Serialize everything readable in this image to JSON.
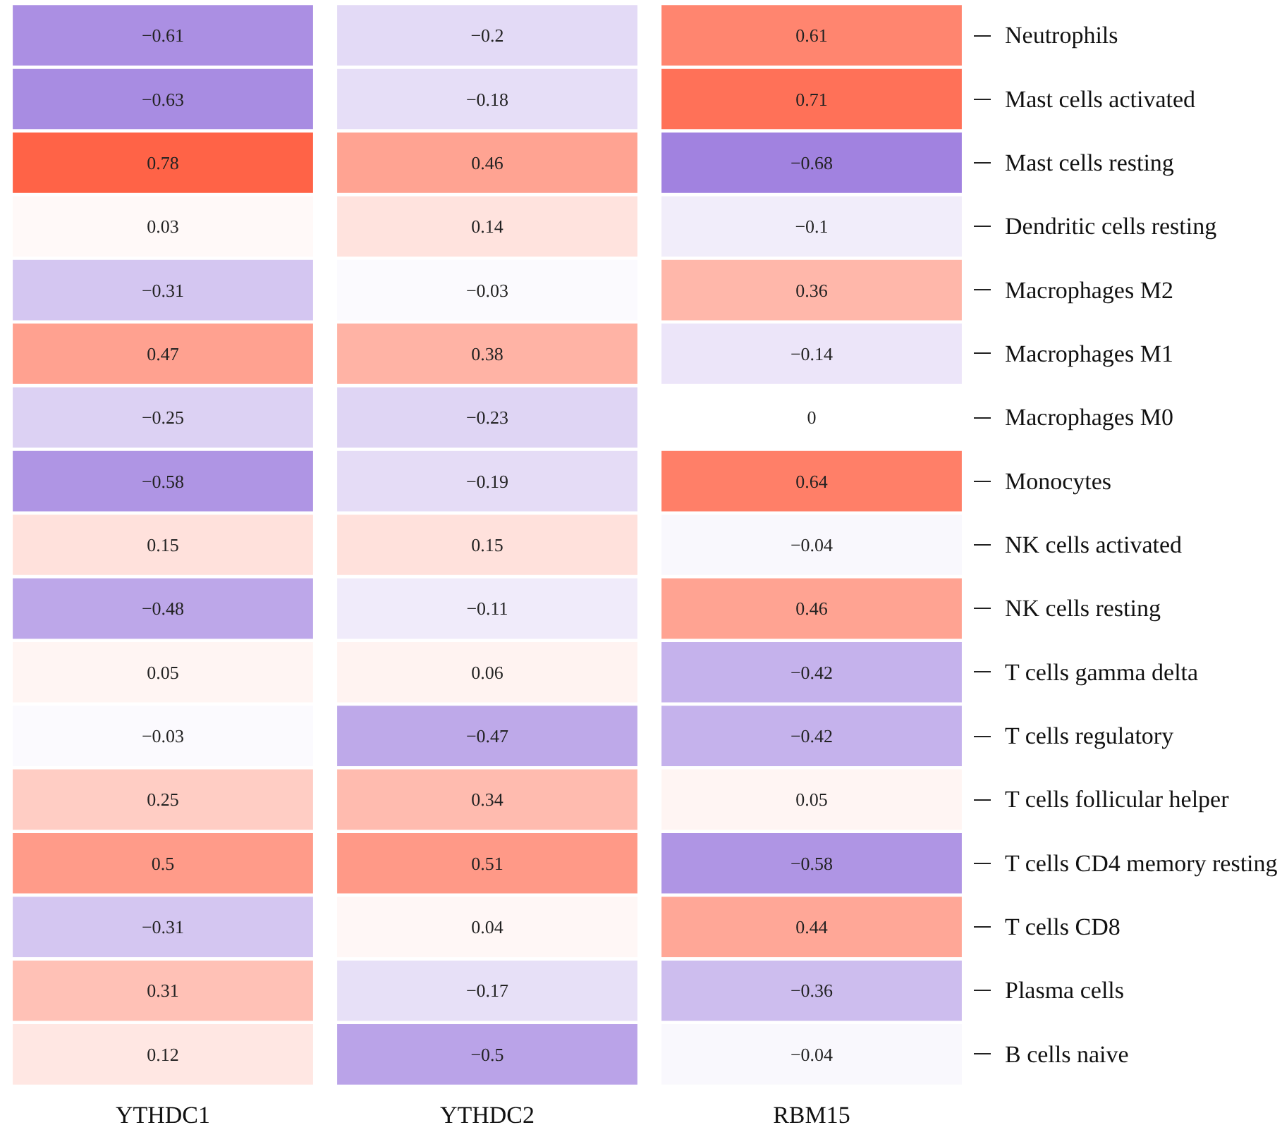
{
  "chart_data": {
    "type": "heatmap",
    "categories": [
      "YTHDC1",
      "YTHDC2",
      "RBM15"
    ],
    "y_categories": [
      "Neutrophils",
      "Mast cells activated",
      "Mast cells resting",
      "Dendritic cells resting",
      "Macrophages M2",
      "Macrophages M1",
      "Macrophages M0",
      "Monocytes",
      "NK cells activated",
      "NK cells resting",
      "T cells gamma delta",
      "T cells regulatory",
      "T cells follicular helper",
      "T cells CD4 memory resting",
      "T cells CD8",
      "Plasma cells",
      "B cells naive"
    ],
    "cells": [
      [
        -0.61,
        -0.2,
        0.61
      ],
      [
        -0.63,
        -0.18,
        0.71
      ],
      [
        0.78,
        0.46,
        -0.68
      ],
      [
        0.03,
        0.14,
        -0.1
      ],
      [
        -0.31,
        -0.03,
        0.36
      ],
      [
        0.47,
        0.38,
        -0.14
      ],
      [
        -0.25,
        -0.23,
        0
      ],
      [
        -0.58,
        -0.19,
        0.64
      ],
      [
        0.15,
        0.15,
        -0.04
      ],
      [
        -0.48,
        -0.11,
        0.46
      ],
      [
        0.05,
        0.06,
        -0.42
      ],
      [
        -0.03,
        -0.47,
        -0.42
      ],
      [
        0.25,
        0.34,
        0.05
      ],
      [
        0.5,
        0.51,
        -0.58
      ],
      [
        -0.31,
        0.04,
        0.44
      ],
      [
        0.31,
        -0.17,
        -0.36
      ],
      [
        0.12,
        -0.5,
        -0.04
      ]
    ],
    "cell_labels": [
      [
        "−0.61",
        "−0.2",
        "0.61"
      ],
      [
        "−0.63",
        "−0.18",
        "0.71"
      ],
      [
        "0.78",
        "0.46",
        "−0.68"
      ],
      [
        "0.03",
        "0.14",
        "−0.1"
      ],
      [
        "−0.31",
        "−0.03",
        "0.36"
      ],
      [
        "0.47",
        "0.38",
        "−0.14"
      ],
      [
        "−0.25",
        "−0.23",
        "0"
      ],
      [
        "−0.58",
        "−0.19",
        "0.64"
      ],
      [
        "0.15",
        "0.15",
        "−0.04"
      ],
      [
        "−0.48",
        "−0.11",
        "0.46"
      ],
      [
        "0.05",
        "0.06",
        "−0.42"
      ],
      [
        "−0.03",
        "−0.47",
        "−0.42"
      ],
      [
        "0.25",
        "0.34",
        "0.05"
      ],
      [
        "0.5",
        "0.51",
        "−0.58"
      ],
      [
        "−0.31",
        "0.04",
        "0.44"
      ],
      [
        "0.31",
        "−0.17",
        "−0.36"
      ],
      [
        "0.12",
        "−0.5",
        "−0.04"
      ]
    ]
  }
}
